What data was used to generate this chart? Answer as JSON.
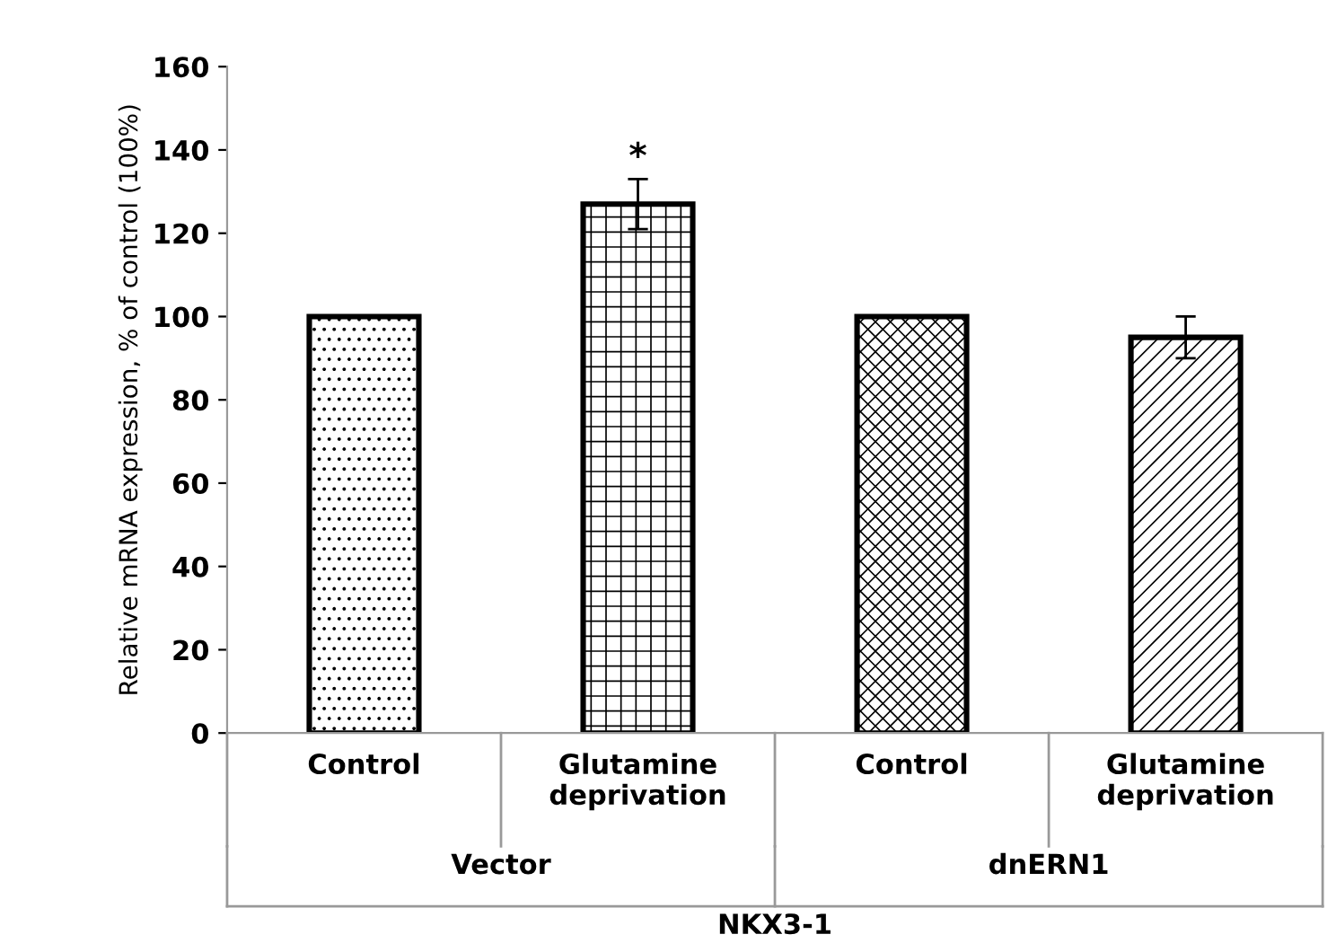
{
  "chart_data": {
    "type": "bar",
    "ylabel": "Relative mRNA expression, % of control (100%)",
    "xlabel": "NKX3-1",
    "categories": [
      "Control",
      "Glutamine\ndeprivation",
      "Control",
      "Glutamine\ndeprivation"
    ],
    "values": [
      100,
      127,
      100,
      95
    ],
    "errors": [
      null,
      6,
      null,
      5
    ],
    "ylim": [
      0,
      160
    ],
    "yticks": [
      0,
      20,
      40,
      60,
      80,
      100,
      120,
      140,
      160
    ],
    "grid": false,
    "annotations": [
      {
        "text": "*",
        "x": "Glutamine\ndeprivation",
        "y": 134
      },
      "Vector",
      "dnERN1"
    ]
  }
}
